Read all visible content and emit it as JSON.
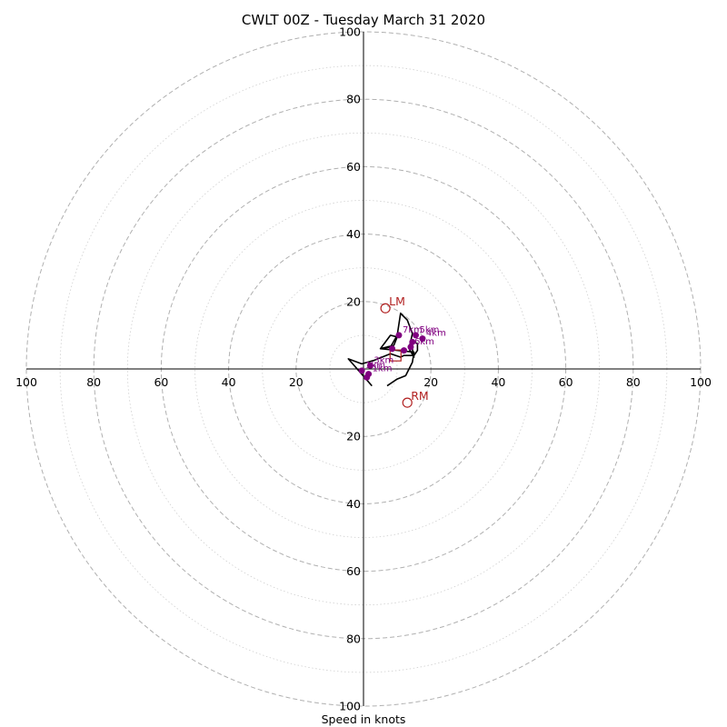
{
  "chart_data": {
    "type": "hodograph",
    "title": "CWLT 00Z - Tuesday March 31 2020",
    "xlabel": "Speed in knots",
    "max_speed": 100,
    "ring_step": 10,
    "ring_labels": [
      "100",
      "80",
      "60",
      "40",
      "20"
    ],
    "ring_label_values": [
      100,
      80,
      60,
      40,
      20
    ],
    "grid": "dashed major rings every 20 kt, dotted minor rings every 10 kt",
    "colors": {
      "axis": "#000000",
      "grid": "#b0b0b0",
      "trace": "#000000",
      "height_points": "#800080",
      "motion": "#b22222"
    },
    "hodograph_trace": [
      [
        2.5,
        -5.0
      ],
      [
        -1.0,
        -1.0
      ],
      [
        -4.5,
        3.0
      ],
      [
        -0.5,
        1.5
      ],
      [
        3.0,
        2.5
      ],
      [
        8.0,
        4.5
      ],
      [
        11.0,
        3.5
      ],
      [
        12.0,
        4.0
      ],
      [
        15.0,
        4.0
      ],
      [
        16.0,
        5.5
      ],
      [
        16.0,
        7.5
      ],
      [
        14.0,
        8.5
      ],
      [
        15.0,
        3.5
      ],
      [
        13.5,
        6.0
      ],
      [
        14.5,
        10.5
      ],
      [
        13.0,
        14.5
      ],
      [
        11.0,
        16.5
      ],
      [
        10.0,
        10.0
      ],
      [
        8.0,
        6.5
      ],
      [
        5.0,
        6.0
      ],
      [
        9.0,
        7.0
      ],
      [
        10.0,
        9.5
      ],
      [
        8.0,
        10.0
      ],
      [
        5.0,
        6.0
      ],
      [
        15.0,
        5.0
      ],
      [
        14.5,
        2.0
      ],
      [
        12.5,
        -2.0
      ],
      [
        10.0,
        -3.0
      ],
      [
        7.0,
        -5.0
      ]
    ],
    "height_points": [
      {
        "label": "1km",
        "x": 1.5,
        "y": -1.5
      },
      {
        "label": "3km",
        "x": 2.0,
        "y": 1.0
      },
      {
        "label": "1km",
        "x": -0.5,
        "y": -0.5
      },
      {
        "label": "",
        "x": 1.0,
        "y": -2.5
      },
      {
        "label": "",
        "x": 12.0,
        "y": 5.5
      },
      {
        "label": "6km",
        "x": 14.0,
        "y": 6.5
      },
      {
        "label": "",
        "x": 8.5,
        "y": 6.0
      },
      {
        "label": "7km",
        "x": 10.5,
        "y": 10.0
      },
      {
        "label": "5km",
        "x": 15.5,
        "y": 10.0
      },
      {
        "label": "4km",
        "x": 17.5,
        "y": 9.0
      },
      {
        "label": "",
        "x": 14.5,
        "y": 8.0
      }
    ],
    "storm_motion": [
      {
        "label": "LM",
        "x": 6.5,
        "y": 18.0
      },
      {
        "label": "RM",
        "x": 13.0,
        "y": -10.0
      }
    ],
    "mean_wind": {
      "x": 9.5,
      "y": 4.0
    }
  }
}
